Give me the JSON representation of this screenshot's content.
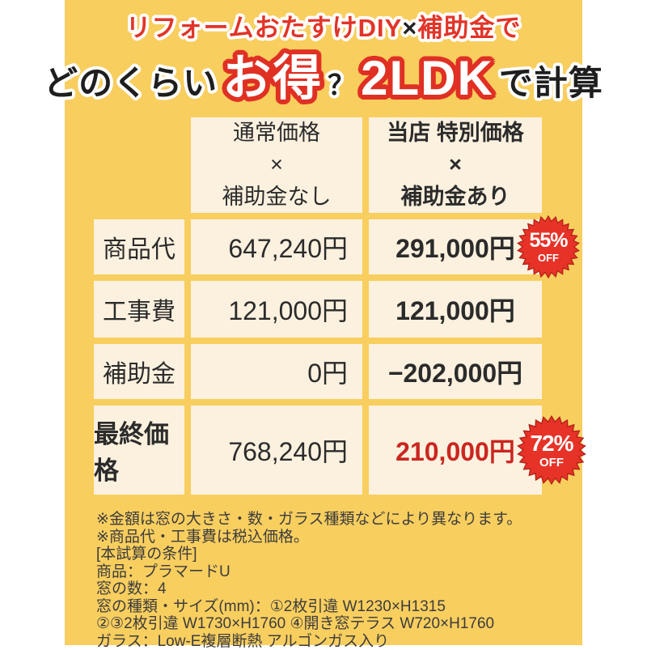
{
  "colors": {
    "panel_yellow": "#f8ce5f",
    "cell_cream": "#fcf1df",
    "accent_red": "#e23428",
    "badge_red": "#e73228",
    "badge_rim_red": "#b22016",
    "price_red": "#cb2620"
  },
  "header": {
    "tagline": {
      "pre": "リフォームおたすけDIY",
      "x": "×",
      "post": "補助金で"
    },
    "title": {
      "lead": "どのくらい",
      "highlight1": "お得",
      "question": "？",
      "highlight2": "2LDK",
      "tail": "で計算"
    }
  },
  "table": {
    "col_headers": [
      {
        "line1": "通常価格",
        "line2": "×",
        "line3": "補助金なし"
      },
      {
        "line1": "当店 特別価格",
        "line2": "×",
        "line3": "補助金あり"
      }
    ],
    "rows": [
      {
        "label": "商品代",
        "normal": "647,240円",
        "special": "291,000円"
      },
      {
        "label": "工事費",
        "normal": "121,000円",
        "special": "121,000円"
      },
      {
        "label": "補助金",
        "normal": "0円",
        "special": "−202,000円"
      },
      {
        "label": "最終価格",
        "normal": "768,240円",
        "special": "210,000円"
      }
    ],
    "badges": {
      "product": {
        "percent": "55%",
        "off": "OFF"
      },
      "final": {
        "percent": "72%",
        "off": "OFF"
      }
    }
  },
  "notes": {
    "lines": [
      "※金額は窓の大きさ・数・ガラス種類などにより異なります。",
      "※商品代・工事費は税込価格。",
      "[本試算の条件]",
      "商品：プラマードU",
      "窓の数：4",
      "窓の種類・サイズ(mm)：①2枚引違 W1230×H1315",
      "②③2枚引違 W1730×H1760 ④開き窓テラス W720×H1760",
      "ガラス：Low-E複層断熱 アルゴンガス入り"
    ]
  }
}
